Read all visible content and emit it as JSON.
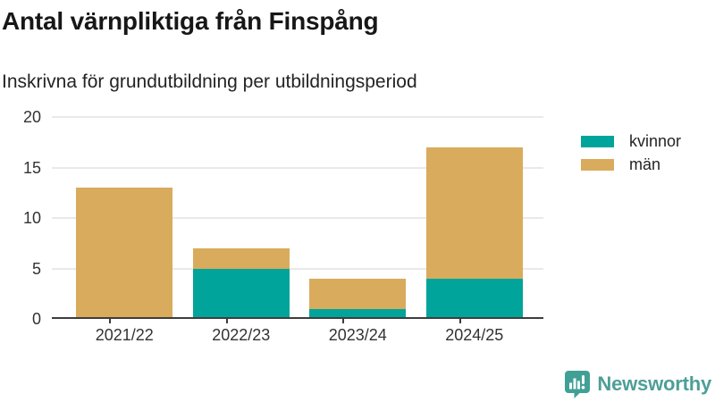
{
  "chart_data": {
    "type": "bar",
    "stacked": true,
    "title": "Antal värnpliktiga från Finspång",
    "subtitle": "Inskrivna för grundutbildning per utbildningsperiod",
    "categories": [
      "2021/22",
      "2022/23",
      "2023/24",
      "2024/25"
    ],
    "series": [
      {
        "name": "kvinnor",
        "color": "#00a49a",
        "values": [
          0,
          5,
          1,
          4
        ]
      },
      {
        "name": "män",
        "color": "#d9ab5c",
        "values": [
          13,
          2,
          3,
          13
        ]
      }
    ],
    "stack_totals": [
      13,
      7,
      4,
      17
    ],
    "ylim": [
      0,
      20
    ],
    "yticks": [
      0,
      5,
      10,
      15,
      20
    ],
    "grid": true,
    "legend_position": "right",
    "colors": {
      "grid": "#e9e9e9",
      "axis_line": "#3d3d3d",
      "tick_text": "#333333"
    }
  },
  "footer": {
    "brand": "Newsworthy",
    "brand_color": "#4d9f97",
    "logo_color": "#41a096"
  }
}
